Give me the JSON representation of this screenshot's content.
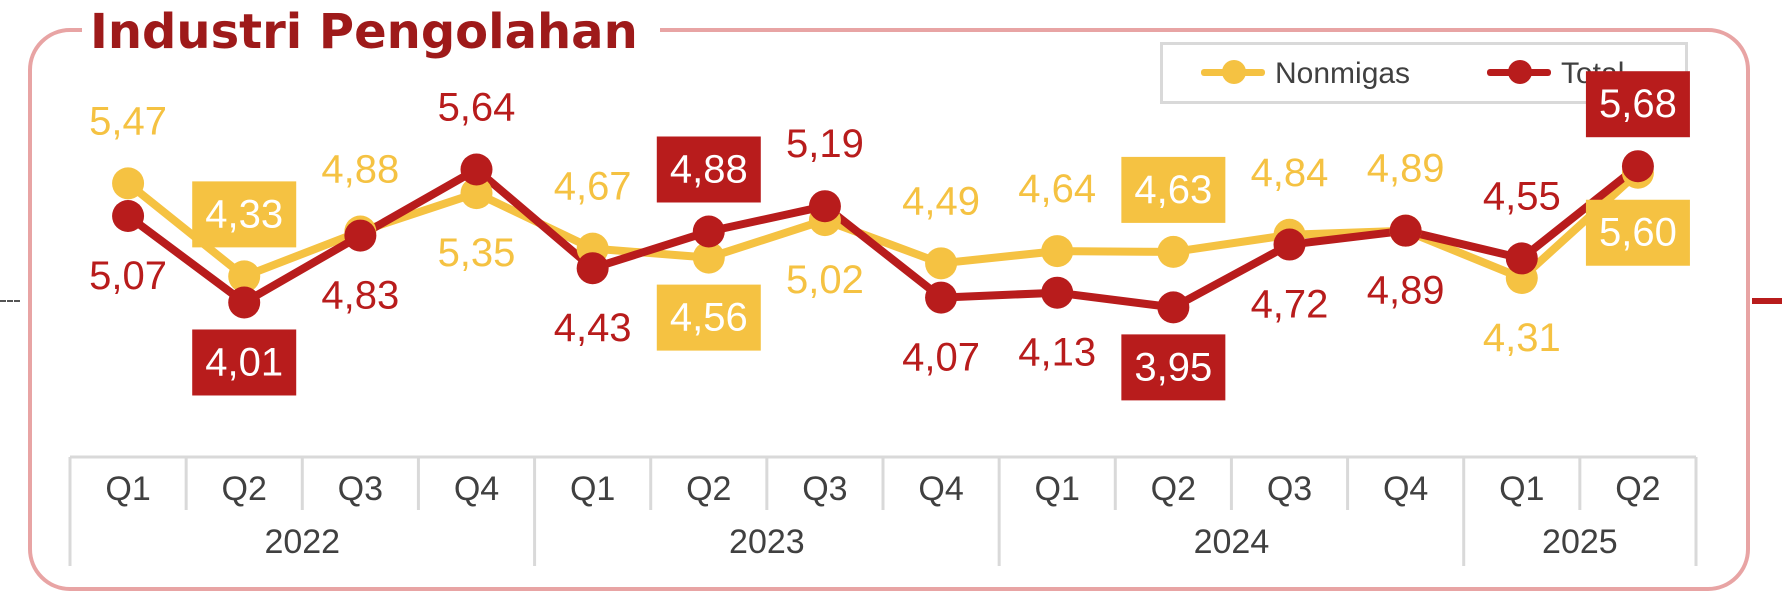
{
  "title": "Industri Pengolahan",
  "legend": {
    "nonmigas": "Nonmigas",
    "total": "Total"
  },
  "colors": {
    "nonmigas": "#f5c242",
    "total": "#b81c1c",
    "frame": "#e8a4a4",
    "title": "#9e1a1a"
  },
  "chart_data": {
    "type": "line",
    "title": "Industri Pengolahan",
    "categories": [
      "Q1",
      "Q2",
      "Q3",
      "Q4",
      "Q1",
      "Q2",
      "Q3",
      "Q4",
      "Q1",
      "Q2",
      "Q3",
      "Q4",
      "Q1",
      "Q2"
    ],
    "year_groups": [
      {
        "label": "2022",
        "count": 4
      },
      {
        "label": "2023",
        "count": 4
      },
      {
        "label": "2024",
        "count": 4
      },
      {
        "label": "2025",
        "count": 2
      }
    ],
    "series": [
      {
        "name": "Nonmigas",
        "values": [
          5.47,
          4.33,
          4.88,
          5.35,
          4.67,
          4.56,
          5.02,
          4.49,
          4.64,
          4.63,
          4.84,
          4.89,
          4.31,
          5.6
        ],
        "labels": [
          "5,47",
          "4,33",
          "4,88",
          "5,35",
          "4,67",
          "4,56",
          "5,02",
          "4,49",
          "4,64",
          "4,63",
          "4,84",
          "4,89",
          "4,31",
          "5,60"
        ],
        "highlight": [
          false,
          true,
          false,
          false,
          false,
          true,
          false,
          false,
          false,
          true,
          false,
          false,
          false,
          true
        ]
      },
      {
        "name": "Total",
        "values": [
          5.07,
          4.01,
          4.83,
          5.64,
          4.43,
          4.88,
          5.19,
          4.07,
          4.13,
          3.95,
          4.72,
          4.89,
          4.55,
          5.68
        ],
        "labels": [
          "5,07",
          "4,01",
          "4,83",
          "5,64",
          "4,43",
          "4,88",
          "5,19",
          "4,07",
          "4,13",
          "3,95",
          "4,72",
          "4,89",
          "4,55",
          "5,68"
        ],
        "highlight": [
          false,
          true,
          false,
          false,
          false,
          true,
          false,
          false,
          false,
          true,
          false,
          false,
          false,
          true
        ]
      }
    ],
    "xlabel": "",
    "ylabel": "",
    "grid": false,
    "legend_position": "top-right"
  }
}
